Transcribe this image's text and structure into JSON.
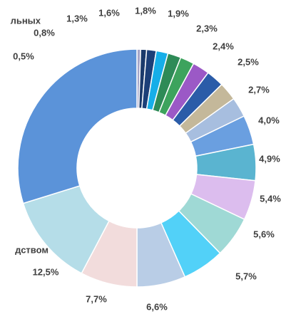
{
  "chart_data": {
    "type": "donut",
    "annotations": [
      "льных",
      "дством"
    ],
    "values": [
      0.5,
      0.8,
      1.3,
      1.6,
      1.8,
      1.9,
      2.3,
      2.4,
      2.5,
      2.7,
      4.0,
      4.9,
      5.4,
      5.6,
      5.7,
      6.6,
      7.7,
      12.5,
      29.8
    ],
    "value_labels": [
      "0,5%",
      "0,8%",
      "1,3%",
      "1,6%",
      "1,8%",
      "1,9%",
      "2,3%",
      "2,4%",
      "2,5%",
      "2,7%",
      "4,0%",
      "4,9%",
      "5,4%",
      "5,6%",
      "5,7%",
      "6,6%",
      "7,7%",
      "12,5%",
      null
    ],
    "colors": [
      "#a5a5c8",
      "#1b3a6b",
      "#1c3f78",
      "#16aee8",
      "#2e8b57",
      "#3da35d",
      "#9b59c6",
      "#2b5ca8",
      "#c4b89a",
      "#a7bedf",
      "#6a9fe0",
      "#5ab4d0",
      "#dcbdee",
      "#9fd9d5",
      "#52d1f8",
      "#b9cde6",
      "#f2dcdc",
      "#b5dde8",
      "#5b93d9",
      "#95b6e3"
    ]
  }
}
